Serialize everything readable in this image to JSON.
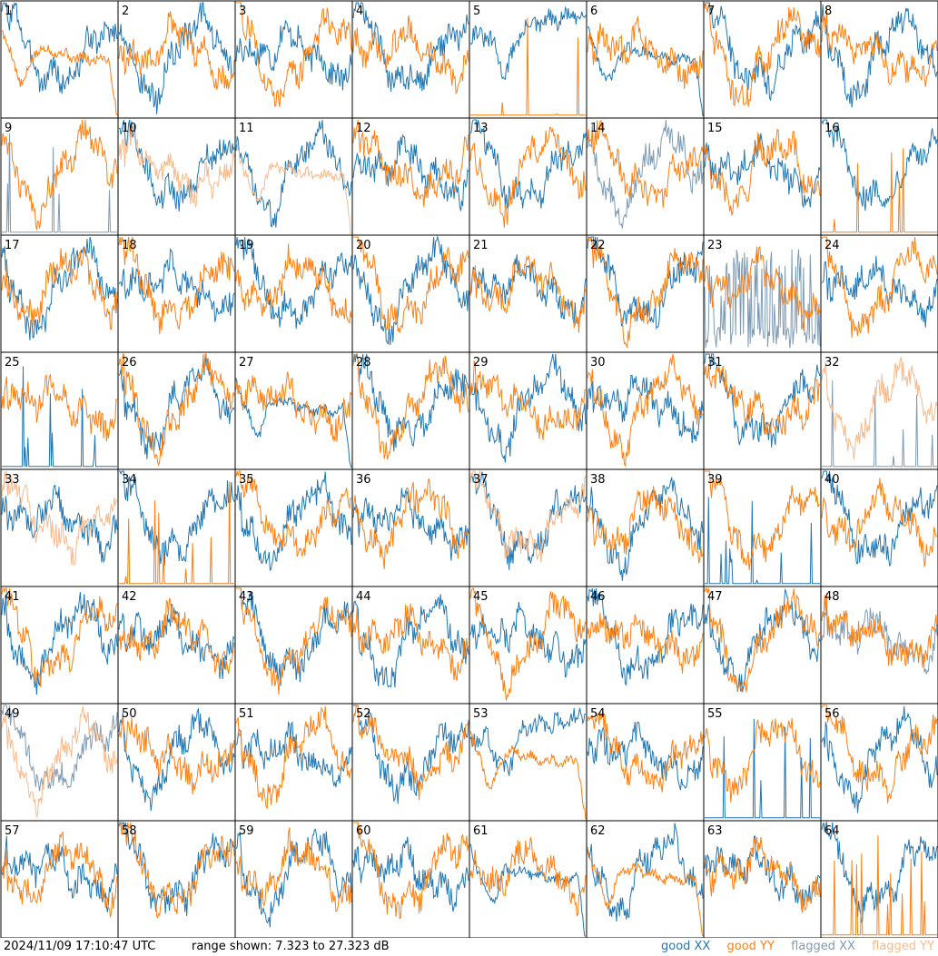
{
  "footer": {
    "timestamp": "2024/11/09 17:10:47 UTC",
    "range_text": "range shown: 7.323 to 27.323 dB"
  },
  "legend": [
    {
      "label": "good XX",
      "color": "#1f77b4"
    },
    {
      "label": "good YY",
      "color": "#ff7f0e"
    },
    {
      "label": "flagged XX",
      "color": "#7f9bb4"
    },
    {
      "label": "flagged YY",
      "color": "#f9b98a"
    }
  ],
  "chart_data": {
    "type": "line",
    "layout": "8x8 small multiples",
    "y_range_db": [
      7.323,
      27.323
    ],
    "panels": [
      {
        "label": "1",
        "xx": "good",
        "yy": "good",
        "xx_shape": "normal",
        "yy_shape": "dip"
      },
      {
        "label": "2",
        "xx": "good",
        "yy": "good",
        "xx_shape": "normal",
        "yy_shape": "normal"
      },
      {
        "label": "3",
        "xx": "good",
        "yy": "good",
        "xx_shape": "normal",
        "yy_shape": "normal"
      },
      {
        "label": "4",
        "xx": "good",
        "yy": "good",
        "xx_shape": "normal",
        "yy_shape": "normal"
      },
      {
        "label": "5",
        "xx": "good",
        "yy": "good",
        "xx_shape": "high_dip",
        "yy_shape": "spiky_floor"
      },
      {
        "label": "6",
        "xx": "good",
        "yy": "good",
        "xx_shape": "dip",
        "yy_shape": "normal"
      },
      {
        "label": "7",
        "xx": "good",
        "yy": "good",
        "xx_shape": "normal",
        "yy_shape": "normal"
      },
      {
        "label": "8",
        "xx": "good",
        "yy": "good",
        "xx_shape": "normal",
        "yy_shape": "normal"
      },
      {
        "label": "9",
        "xx": "flagged",
        "yy": "good",
        "xx_shape": "spiky_floor",
        "yy_shape": "normal"
      },
      {
        "label": "10",
        "xx": "good",
        "yy": "flagged",
        "xx_shape": "normal",
        "yy_shape": "normal"
      },
      {
        "label": "11",
        "xx": "good",
        "yy": "flagged",
        "xx_shape": "normal",
        "yy_shape": "dip"
      },
      {
        "label": "12",
        "xx": "good",
        "yy": "good",
        "xx_shape": "normal",
        "yy_shape": "normal"
      },
      {
        "label": "13",
        "xx": "good",
        "yy": "good",
        "xx_shape": "normal",
        "yy_shape": "normal"
      },
      {
        "label": "14",
        "xx": "flagged",
        "yy": "good",
        "xx_shape": "normal",
        "yy_shape": "normal"
      },
      {
        "label": "15",
        "xx": "good",
        "yy": "good",
        "xx_shape": "normal",
        "yy_shape": "normal"
      },
      {
        "label": "16",
        "xx": "good",
        "yy": "good",
        "xx_shape": "normal",
        "yy_shape": "spiky_floor"
      },
      {
        "label": "17",
        "xx": "good",
        "yy": "good",
        "xx_shape": "normal",
        "yy_shape": "normal"
      },
      {
        "label": "18",
        "xx": "good",
        "yy": "good",
        "xx_shape": "normal",
        "yy_shape": "normal"
      },
      {
        "label": "19",
        "xx": "good",
        "yy": "good",
        "xx_shape": "normal",
        "yy_shape": "normal"
      },
      {
        "label": "20",
        "xx": "good",
        "yy": "good",
        "xx_shape": "normal",
        "yy_shape": "normal"
      },
      {
        "label": "21",
        "xx": "good",
        "yy": "good",
        "xx_shape": "normal",
        "yy_shape": "normal"
      },
      {
        "label": "22",
        "xx": "good",
        "yy": "good",
        "xx_shape": "normal",
        "yy_shape": "normal"
      },
      {
        "label": "23",
        "xx": "flagged",
        "yy": "good",
        "xx_shape": "noisy_low",
        "yy_shape": "normal"
      },
      {
        "label": "24",
        "xx": "good",
        "yy": "good",
        "xx_shape": "normal",
        "yy_shape": "normal"
      },
      {
        "label": "25",
        "xx": "good",
        "yy": "good",
        "xx_shape": "spiky_floor",
        "yy_shape": "normal"
      },
      {
        "label": "26",
        "xx": "good",
        "yy": "good",
        "xx_shape": "normal",
        "yy_shape": "normal"
      },
      {
        "label": "27",
        "xx": "good",
        "yy": "good",
        "xx_shape": "dip",
        "yy_shape": "normal"
      },
      {
        "label": "28",
        "xx": "good",
        "yy": "good",
        "xx_shape": "normal",
        "yy_shape": "normal"
      },
      {
        "label": "29",
        "xx": "good",
        "yy": "good",
        "xx_shape": "normal",
        "yy_shape": "normal"
      },
      {
        "label": "30",
        "xx": "good",
        "yy": "good",
        "xx_shape": "normal",
        "yy_shape": "normal"
      },
      {
        "label": "31",
        "xx": "good",
        "yy": "good",
        "xx_shape": "normal",
        "yy_shape": "normal"
      },
      {
        "label": "32",
        "xx": "flagged",
        "yy": "flagged",
        "xx_shape": "spiky_floor",
        "yy_shape": "normal"
      },
      {
        "label": "33",
        "xx": "good",
        "yy": "flagged",
        "xx_shape": "normal",
        "yy_shape": "normal"
      },
      {
        "label": "34",
        "xx": "good",
        "yy": "good",
        "xx_shape": "normal",
        "yy_shape": "spiky_floor"
      },
      {
        "label": "35",
        "xx": "good",
        "yy": "good",
        "xx_shape": "normal",
        "yy_shape": "normal"
      },
      {
        "label": "36",
        "xx": "good",
        "yy": "good",
        "xx_shape": "normal",
        "yy_shape": "normal"
      },
      {
        "label": "37",
        "xx": "good",
        "yy": "flagged",
        "xx_shape": "normal",
        "yy_shape": "normal"
      },
      {
        "label": "38",
        "xx": "good",
        "yy": "good",
        "xx_shape": "normal",
        "yy_shape": "normal"
      },
      {
        "label": "39",
        "xx": "good",
        "yy": "good",
        "xx_shape": "spiky_floor",
        "yy_shape": "normal"
      },
      {
        "label": "40",
        "xx": "good",
        "yy": "good",
        "xx_shape": "normal",
        "yy_shape": "normal"
      },
      {
        "label": "41",
        "xx": "good",
        "yy": "good",
        "xx_shape": "normal",
        "yy_shape": "normal"
      },
      {
        "label": "42",
        "xx": "good",
        "yy": "good",
        "xx_shape": "normal",
        "yy_shape": "normal"
      },
      {
        "label": "43",
        "xx": "good",
        "yy": "good",
        "xx_shape": "normal",
        "yy_shape": "normal"
      },
      {
        "label": "44",
        "xx": "good",
        "yy": "good",
        "xx_shape": "normal",
        "yy_shape": "normal"
      },
      {
        "label": "45",
        "xx": "good",
        "yy": "good",
        "xx_shape": "normal",
        "yy_shape": "normal"
      },
      {
        "label": "46",
        "xx": "good",
        "yy": "good",
        "xx_shape": "normal",
        "yy_shape": "normal"
      },
      {
        "label": "47",
        "xx": "good",
        "yy": "good",
        "xx_shape": "normal",
        "yy_shape": "normal"
      },
      {
        "label": "48",
        "xx": "flagged",
        "yy": "good",
        "xx_shape": "normal",
        "yy_shape": "normal"
      },
      {
        "label": "49",
        "xx": "flagged",
        "yy": "flagged",
        "xx_shape": "normal",
        "yy_shape": "normal"
      },
      {
        "label": "50",
        "xx": "good",
        "yy": "good",
        "xx_shape": "normal",
        "yy_shape": "normal"
      },
      {
        "label": "51",
        "xx": "good",
        "yy": "good",
        "xx_shape": "normal",
        "yy_shape": "normal"
      },
      {
        "label": "52",
        "xx": "good",
        "yy": "good",
        "xx_shape": "normal",
        "yy_shape": "normal"
      },
      {
        "label": "53",
        "xx": "good",
        "yy": "good",
        "xx_shape": "high_dip",
        "yy_shape": "dip"
      },
      {
        "label": "54",
        "xx": "good",
        "yy": "good",
        "xx_shape": "normal",
        "yy_shape": "normal"
      },
      {
        "label": "55",
        "xx": "good",
        "yy": "good",
        "xx_shape": "spiky_floor",
        "yy_shape": "normal"
      },
      {
        "label": "56",
        "xx": "good",
        "yy": "good",
        "xx_shape": "normal",
        "yy_shape": "normal"
      },
      {
        "label": "57",
        "xx": "good",
        "yy": "good",
        "xx_shape": "normal",
        "yy_shape": "normal"
      },
      {
        "label": "58",
        "xx": "good",
        "yy": "good",
        "xx_shape": "normal",
        "yy_shape": "normal"
      },
      {
        "label": "59",
        "xx": "good",
        "yy": "good",
        "xx_shape": "normal",
        "yy_shape": "normal"
      },
      {
        "label": "60",
        "xx": "good",
        "yy": "good",
        "xx_shape": "normal",
        "yy_shape": "normal"
      },
      {
        "label": "61",
        "xx": "good",
        "yy": "good",
        "xx_shape": "dip",
        "yy_shape": "normal"
      },
      {
        "label": "62",
        "xx": "good",
        "yy": "good",
        "xx_shape": "normal",
        "yy_shape": "dip"
      },
      {
        "label": "63",
        "xx": "good",
        "yy": "good",
        "xx_shape": "normal",
        "yy_shape": "normal"
      },
      {
        "label": "64",
        "xx": "good",
        "yy": "good",
        "xx_shape": "normal",
        "yy_shape": "spiky_floor"
      }
    ]
  }
}
